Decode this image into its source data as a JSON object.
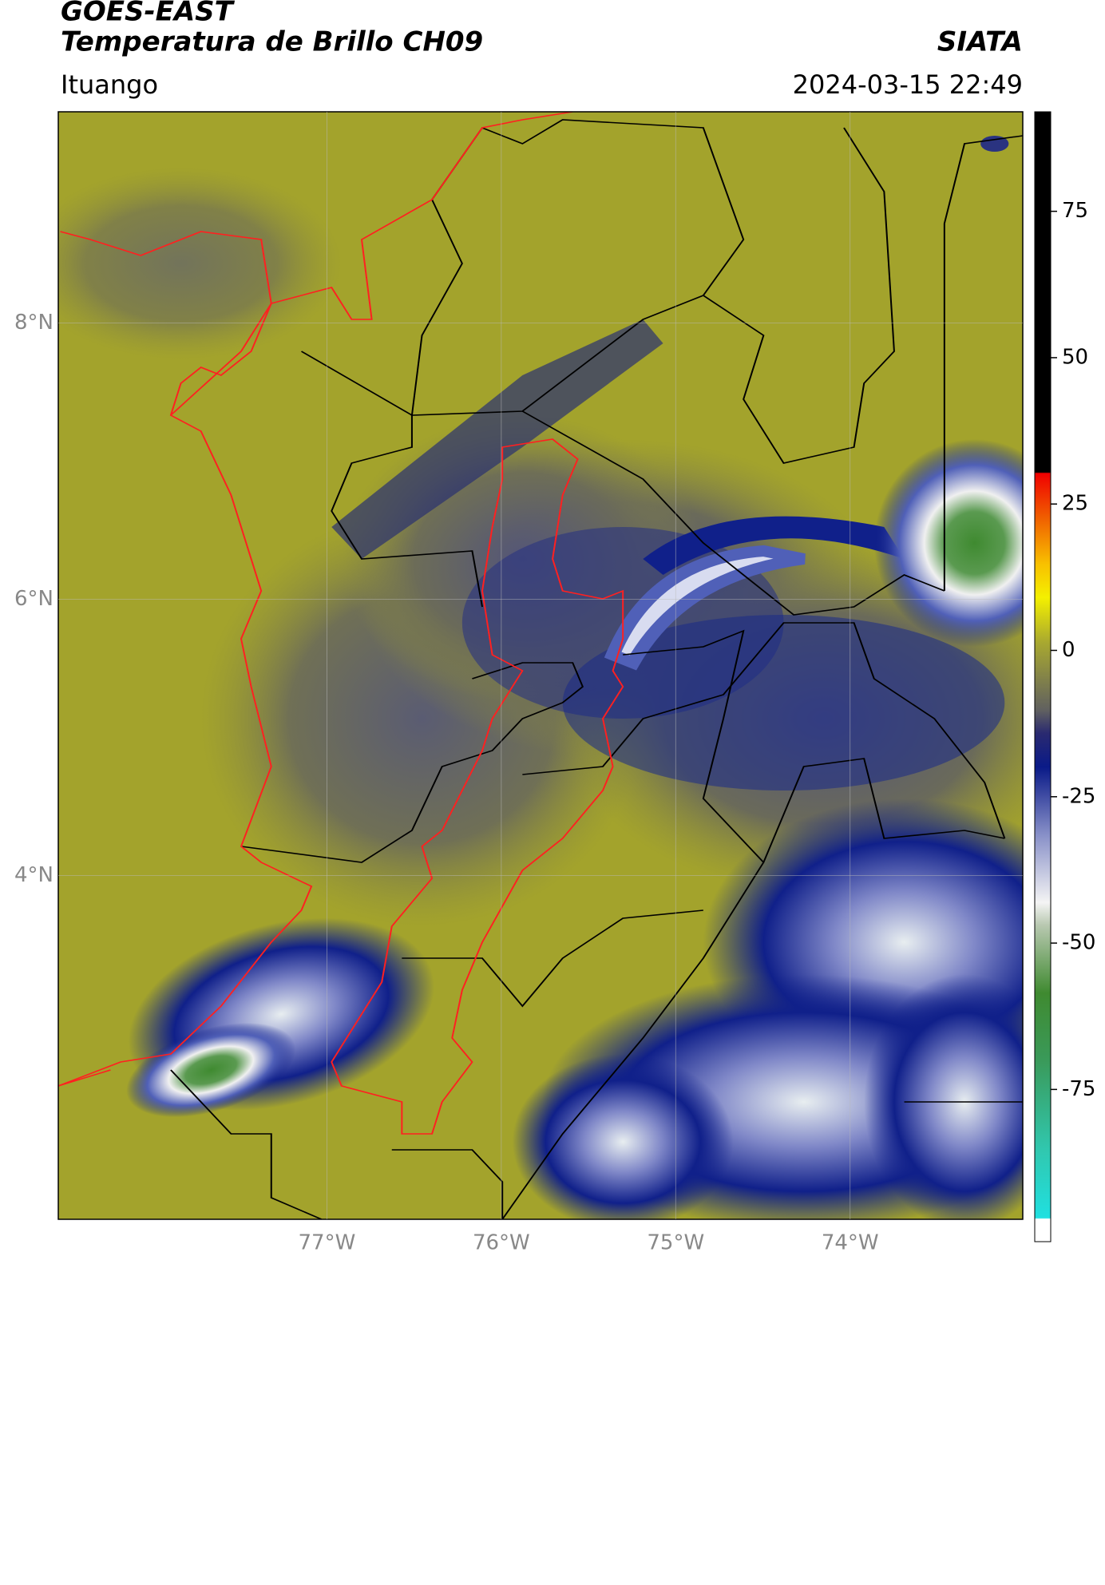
{
  "chart_data": {
    "type": "map",
    "title": "GOES-EAST",
    "subtitle": "Temperatura de Brillo CH09",
    "source": "SIATA",
    "location": "Ituango",
    "datetime": "2024-03-15 22:49",
    "xlim": [
      -78.54,
      -73.01
    ],
    "ylim": [
      1.51,
      9.53
    ],
    "xticks": [
      {
        "value": -77,
        "label": "77°W"
      },
      {
        "value": -76,
        "label": "76°W"
      },
      {
        "value": -75,
        "label": "75°W"
      },
      {
        "value": -74,
        "label": "74°W"
      }
    ],
    "yticks": [
      {
        "value": 4,
        "label": "4°N"
      },
      {
        "value": 6,
        "label": "6°N"
      },
      {
        "value": 8,
        "label": "8°N"
      }
    ],
    "grid": true,
    "colorbar": {
      "clim": [
        -101,
        92
      ],
      "ticks": [
        -75,
        -50,
        -25,
        0,
        25,
        50,
        75
      ]
    }
  }
}
